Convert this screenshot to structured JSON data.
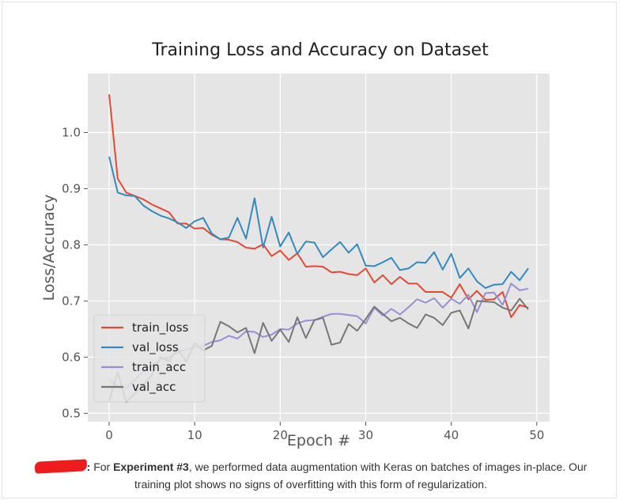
{
  "chart_data": {
    "type": "line",
    "title": "Training Loss and Accuracy on Dataset",
    "xlabel": "Epoch #",
    "ylabel": "Loss/Accuracy",
    "xlim": [
      -2.5,
      51.5
    ],
    "ylim": [
      0.485,
      1.105
    ],
    "xticks": [
      0,
      10,
      20,
      30,
      40,
      50
    ],
    "yticks": [
      0.5,
      0.6,
      0.7,
      0.8,
      0.9,
      1.0
    ],
    "xtick_labels": [
      "0",
      "10",
      "20",
      "30",
      "40",
      "50"
    ],
    "ytick_labels": [
      "0.5",
      "0.6",
      "0.7",
      "0.8",
      "0.9",
      "1.0"
    ],
    "grid": true,
    "legend_position": "bottom-left",
    "x": [
      0,
      1,
      2,
      3,
      4,
      5,
      6,
      7,
      8,
      9,
      10,
      11,
      12,
      13,
      14,
      15,
      16,
      17,
      18,
      19,
      20,
      21,
      22,
      23,
      24,
      25,
      26,
      27,
      28,
      29,
      30,
      31,
      32,
      33,
      34,
      35,
      36,
      37,
      38,
      39,
      40,
      41,
      42,
      43,
      44,
      45,
      46,
      47,
      48,
      49
    ],
    "series": [
      {
        "name": "train_loss",
        "color": "#e24a33",
        "values": [
          1.068,
          0.918,
          0.893,
          0.887,
          0.881,
          0.872,
          0.865,
          0.858,
          0.838,
          0.838,
          0.829,
          0.83,
          0.818,
          0.81,
          0.809,
          0.805,
          0.795,
          0.793,
          0.801,
          0.78,
          0.79,
          0.773,
          0.785,
          0.761,
          0.762,
          0.761,
          0.751,
          0.752,
          0.748,
          0.746,
          0.758,
          0.733,
          0.746,
          0.73,
          0.743,
          0.731,
          0.731,
          0.716,
          0.716,
          0.716,
          0.706,
          0.73,
          0.703,
          0.718,
          0.702,
          0.703,
          0.716,
          0.671,
          0.693,
          0.688
        ]
      },
      {
        "name": "val_loss",
        "color": "#348abd",
        "values": [
          0.957,
          0.893,
          0.888,
          0.887,
          0.87,
          0.86,
          0.852,
          0.847,
          0.84,
          0.83,
          0.842,
          0.848,
          0.82,
          0.81,
          0.813,
          0.848,
          0.811,
          0.883,
          0.795,
          0.85,
          0.797,
          0.822,
          0.784,
          0.806,
          0.804,
          0.778,
          0.792,
          0.805,
          0.786,
          0.801,
          0.763,
          0.762,
          0.769,
          0.777,
          0.755,
          0.758,
          0.769,
          0.768,
          0.787,
          0.756,
          0.784,
          0.741,
          0.758,
          0.735,
          0.723,
          0.729,
          0.73,
          0.752,
          0.737,
          0.758
        ]
      },
      {
        "name": "train_acc",
        "color": "#988ed5",
        "values": [
          0.562,
          0.546,
          0.545,
          0.56,
          0.575,
          0.585,
          0.596,
          0.6,
          0.608,
          0.614,
          0.618,
          0.62,
          0.627,
          0.63,
          0.638,
          0.633,
          0.646,
          0.645,
          0.636,
          0.64,
          0.65,
          0.649,
          0.66,
          0.665,
          0.666,
          0.672,
          0.677,
          0.677,
          0.675,
          0.673,
          0.66,
          0.688,
          0.674,
          0.686,
          0.676,
          0.689,
          0.703,
          0.697,
          0.705,
          0.688,
          0.704,
          0.695,
          0.711,
          0.68,
          0.714,
          0.715,
          0.693,
          0.731,
          0.719,
          0.722
        ]
      },
      {
        "name": "val_acc",
        "color": "#777777",
        "values": [
          0.522,
          0.573,
          0.52,
          0.535,
          0.55,
          0.569,
          0.6,
          0.593,
          0.615,
          0.592,
          0.625,
          0.612,
          0.62,
          0.663,
          0.655,
          0.644,
          0.652,
          0.607,
          0.661,
          0.629,
          0.649,
          0.627,
          0.671,
          0.634,
          0.666,
          0.67,
          0.622,
          0.626,
          0.659,
          0.647,
          0.668,
          0.69,
          0.677,
          0.664,
          0.67,
          0.66,
          0.652,
          0.676,
          0.67,
          0.657,
          0.679,
          0.683,
          0.651,
          0.7,
          0.699,
          0.698,
          0.688,
          0.683,
          0.704,
          0.685
        ]
      }
    ]
  },
  "caption": {
    "prefix": ":",
    "lead": " For ",
    "bold": "Experiment #3",
    "body": ", we performed data augmentation with Keras on batches of images in-place. Our training plot shows no signs of overfitting with this form of regularization."
  }
}
